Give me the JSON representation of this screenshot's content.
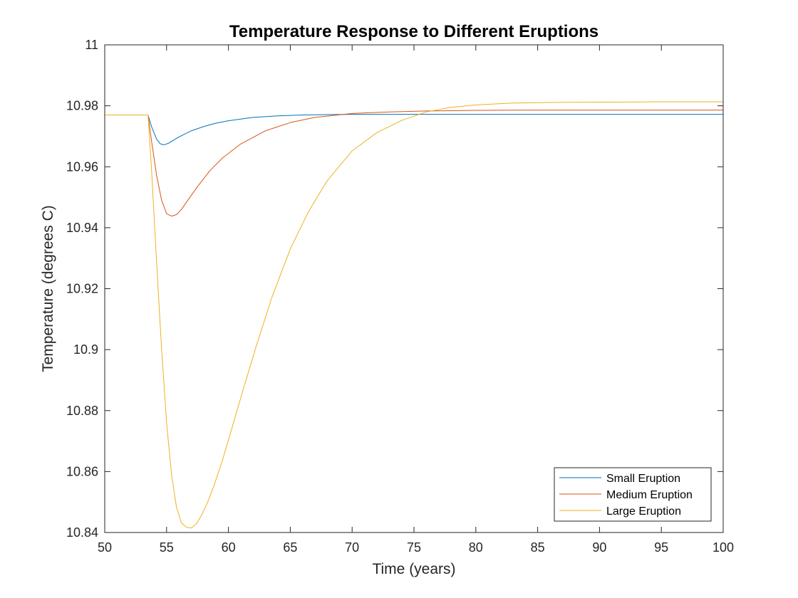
{
  "chart_data": {
    "type": "line",
    "title": "Temperature Response to Different Eruptions",
    "xlabel": "Time (years)",
    "ylabel": "Temperature (degrees C)",
    "xlim": [
      50,
      100
    ],
    "ylim": [
      10.84,
      11
    ],
    "x_ticks": [
      50,
      55,
      60,
      65,
      70,
      75,
      80,
      85,
      90,
      95,
      100
    ],
    "x_tick_labels": [
      "50",
      "55",
      "60",
      "65",
      "70",
      "75",
      "80",
      "85",
      "90",
      "95",
      "100"
    ],
    "y_ticks": [
      10.84,
      10.86,
      10.88,
      10.9,
      10.92,
      10.94,
      10.96,
      10.98,
      11
    ],
    "y_tick_labels": [
      "10.84",
      "10.86",
      "10.88",
      "10.9",
      "10.92",
      "10.94",
      "10.96",
      "10.98",
      "11"
    ],
    "grid": false,
    "legend_position": "bottom-right",
    "series": [
      {
        "name": "Small Eruption",
        "color": "#0072BD",
        "x": [
          50,
          53.5,
          53.8,
          54.2,
          54.5,
          54.8,
          55.2,
          55.6,
          56,
          57,
          58,
          59,
          60,
          62,
          64,
          66,
          68,
          70,
          72,
          75,
          80,
          85,
          90,
          95,
          100
        ],
        "y": [
          10.977,
          10.977,
          10.973,
          10.969,
          10.9675,
          10.9672,
          10.9678,
          10.9688,
          10.9698,
          10.9718,
          10.9732,
          10.9743,
          10.9751,
          10.9762,
          10.9767,
          10.977,
          10.9771,
          10.9772,
          10.9772,
          10.9772,
          10.9772,
          10.9772,
          10.9772,
          10.9772,
          10.9772
        ]
      },
      {
        "name": "Medium Eruption",
        "color": "#D95319",
        "x": [
          50,
          53.5,
          53.8,
          54.2,
          54.6,
          55,
          55.4,
          55.8,
          56.2,
          56.8,
          57.5,
          58.5,
          59.5,
          61,
          63,
          65,
          67,
          70,
          73,
          76,
          80,
          85,
          90,
          95,
          100
        ],
        "y": [
          10.977,
          10.977,
          10.968,
          10.957,
          10.949,
          10.9446,
          10.9438,
          10.9443,
          10.946,
          10.9495,
          10.9535,
          10.9587,
          10.9628,
          10.9675,
          10.9718,
          10.9745,
          10.9762,
          10.9775,
          10.978,
          10.9783,
          10.9785,
          10.9786,
          10.9786,
          10.9786,
          10.9786
        ]
      },
      {
        "name": "Large Eruption",
        "color": "#EDB120",
        "x": [
          50,
          53.5,
          53.8,
          54.2,
          54.6,
          55,
          55.4,
          55.8,
          56.2,
          56.6,
          57,
          57.4,
          57.8,
          58.3,
          58.8,
          59.5,
          60.3,
          61.2,
          62.2,
          63.5,
          65,
          66.5,
          68,
          70,
          72,
          74,
          76,
          78,
          80,
          83,
          86,
          90,
          95,
          100
        ],
        "y": [
          10.977,
          10.977,
          10.958,
          10.928,
          10.9,
          10.876,
          10.859,
          10.8483,
          10.8432,
          10.8417,
          10.8415,
          10.8428,
          10.8455,
          10.8498,
          10.855,
          10.8635,
          10.8745,
          10.887,
          10.9005,
          10.917,
          10.933,
          10.9455,
          10.9555,
          10.9652,
          10.9712,
          10.9752,
          10.978,
          10.9795,
          10.9803,
          10.9809,
          10.9811,
          10.9812,
          10.9813,
          10.9813
        ]
      }
    ]
  }
}
